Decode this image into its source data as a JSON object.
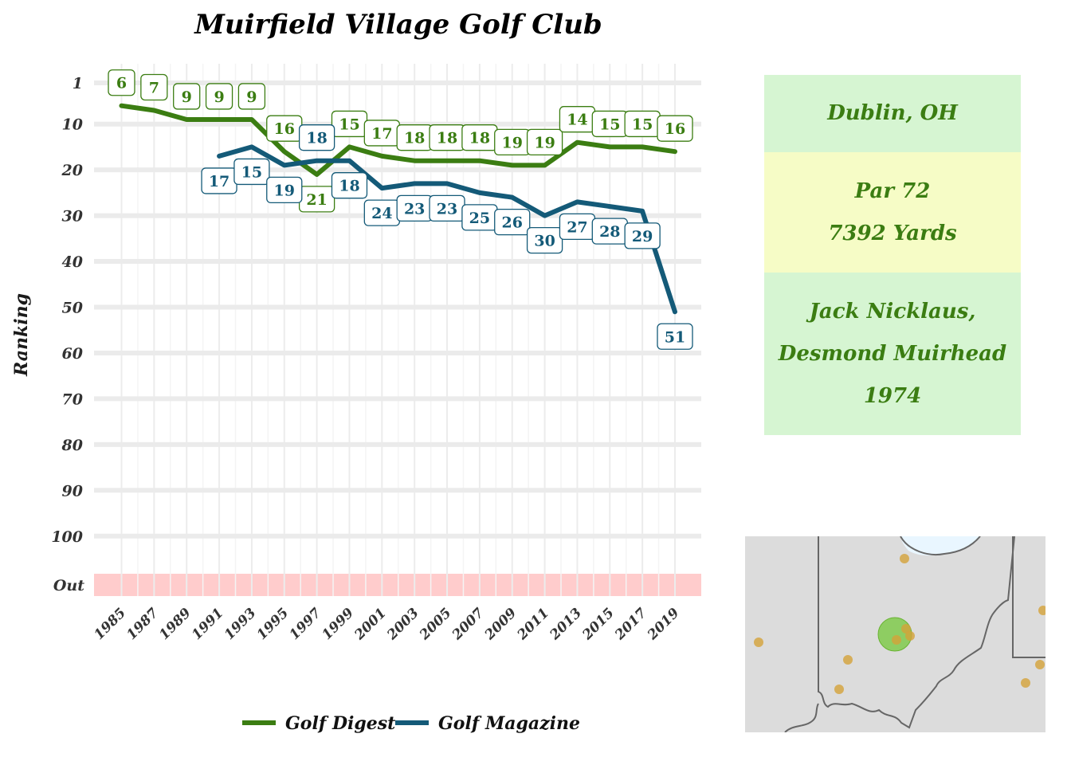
{
  "chart_data": {
    "type": "line",
    "title": "Muirfield Village Golf Club",
    "xlabel": "",
    "ylabel": "Ranking",
    "x_ticks": [
      1985,
      1987,
      1989,
      1991,
      1993,
      1995,
      1997,
      1999,
      2001,
      2003,
      2005,
      2007,
      2009,
      2011,
      2013,
      2015,
      2017,
      2019
    ],
    "y_ticks": [
      "1",
      "10",
      "20",
      "30",
      "40",
      "50",
      "60",
      "70",
      "80",
      "90",
      "100",
      "Out"
    ],
    "y_scale": "reversed",
    "ylim": [
      1,
      100
    ],
    "out_band_color": "#ffcccc",
    "grid": true,
    "legend_position": "bottom",
    "series": [
      {
        "name": "Golf Digest",
        "color": "#3b7d12",
        "x": [
          1985,
          1987,
          1989,
          1991,
          1993,
          1995,
          1997,
          1999,
          2001,
          2003,
          2005,
          2007,
          2009,
          2011,
          2013,
          2015,
          2017,
          2019
        ],
        "values": [
          6,
          7,
          9,
          9,
          9,
          16,
          21,
          15,
          17,
          18,
          18,
          18,
          19,
          19,
          14,
          15,
          15,
          16
        ]
      },
      {
        "name": "Golf Magazine",
        "color": "#145a78",
        "x": [
          1991,
          1993,
          1995,
          1997,
          1999,
          2001,
          2003,
          2005,
          2007,
          2009,
          2011,
          2013,
          2015,
          2017,
          2019
        ],
        "values": [
          17,
          15,
          19,
          18,
          18,
          24,
          23,
          23,
          25,
          26,
          30,
          27,
          28,
          29,
          51
        ]
      }
    ]
  },
  "info": {
    "location": "Dublin, OH",
    "par": "Par 72",
    "yards": "7392 Yards",
    "architect_line1": "Jack Nicklaus,",
    "architect_line2": "Desmond Muirhead",
    "year": "1974"
  },
  "map": {
    "region": "Ohio",
    "highlight_color": "#7ac943",
    "marker_color": "#d4a339",
    "water_color": "#e9f6ff"
  }
}
